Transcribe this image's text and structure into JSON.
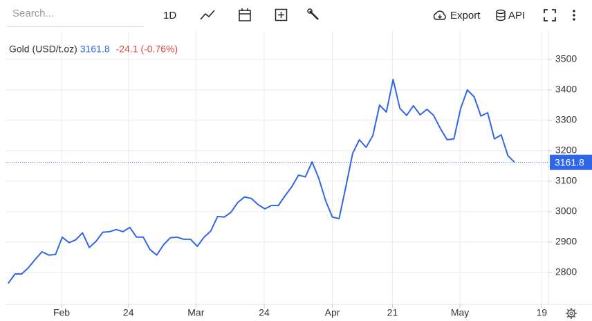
{
  "toolbar": {
    "search_placeholder": "Search...",
    "interval": "1D",
    "export": "Export",
    "api": "API"
  },
  "chart_data": {
    "type": "line",
    "title": "Gold (USD/t.oz)",
    "subtitle": "-24.1 (-0.76%)",
    "x": [
      0,
      1,
      2,
      3,
      4,
      5,
      6,
      7,
      8,
      9,
      10,
      11,
      12,
      13,
      14,
      15,
      16,
      17,
      18,
      19,
      20,
      21,
      22,
      23,
      24,
      25,
      26,
      27,
      28,
      29,
      30,
      31,
      32,
      33,
      34,
      35,
      36,
      37,
      38,
      39,
      40,
      41,
      42,
      43,
      44,
      45,
      46,
      47,
      48,
      49,
      50,
      51,
      52,
      53,
      54,
      55,
      56,
      57,
      58,
      59,
      60,
      61,
      62,
      63,
      64,
      65,
      66,
      67,
      68,
      69,
      70,
      71,
      72,
      73,
      74,
      75
    ],
    "series": [
      {
        "name": "Gold",
        "color": "#2f66e8",
        "values": [
          2764,
          2795,
          2795,
          2816,
          2843,
          2868,
          2857,
          2859,
          2916,
          2898,
          2907,
          2930,
          2882,
          2902,
          2932,
          2934,
          2941,
          2934,
          2948,
          2916,
          2916,
          2875,
          2857,
          2891,
          2914,
          2916,
          2909,
          2909,
          2886,
          2916,
          2936,
          2984,
          2982,
          2998,
          3030,
          3048,
          3043,
          3023,
          3009,
          3020,
          3020,
          3052,
          3082,
          3120,
          3114,
          3163,
          3109,
          3036,
          2982,
          2977,
          3082,
          3191,
          3236,
          3211,
          3250,
          3350,
          3327,
          3434,
          3339,
          3316,
          3348,
          3318,
          3336,
          3316,
          3273,
          3236,
          3239,
          3339,
          3400,
          3377,
          3314,
          3325,
          3239,
          3252,
          3184,
          3161.8
        ]
      }
    ],
    "xlim": [
      -0.4,
      80
    ],
    "xticks": [
      {
        "value": 7.9,
        "label": "Feb"
      },
      {
        "value": 17.8,
        "label": "24"
      },
      {
        "value": 27.8,
        "label": "Mar"
      },
      {
        "value": 37.9,
        "label": "24"
      },
      {
        "value": 48,
        "label": "Apr"
      },
      {
        "value": 56.9,
        "label": "21"
      },
      {
        "value": 66.9,
        "label": "May"
      },
      {
        "value": 79,
        "label": "19"
      }
    ],
    "ylim": [
      2695,
      3593
    ],
    "yticks": [
      2800,
      2900,
      3000,
      3100,
      3200,
      3300,
      3400,
      3500
    ],
    "grid": true
  }
}
